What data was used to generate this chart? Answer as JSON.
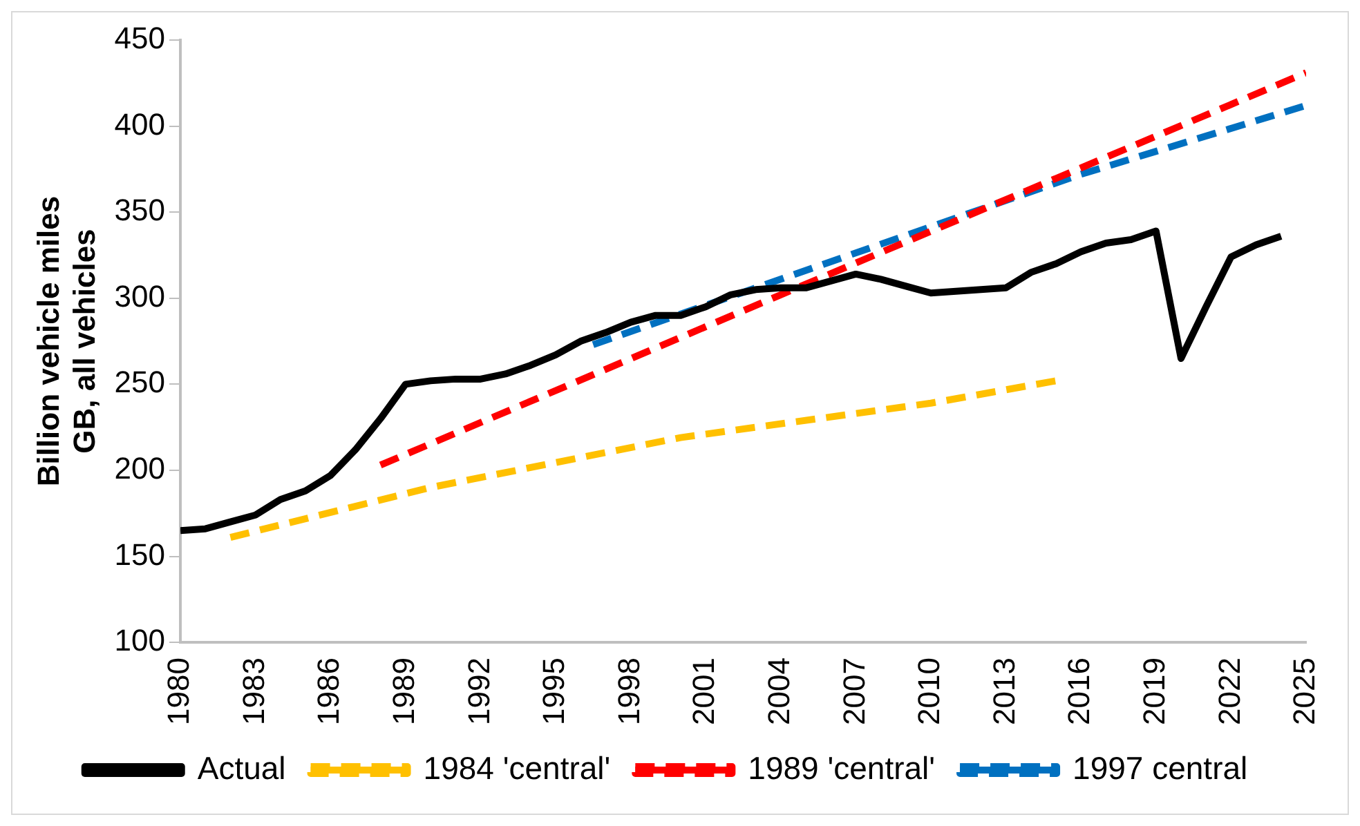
{
  "chart_data": {
    "type": "line",
    "ylabel": "Billion vehicle miles\nGB, all vehicles",
    "xlim": [
      1980,
      2025
    ],
    "xticks": [
      1980,
      1983,
      1986,
      1989,
      1992,
      1995,
      1998,
      2001,
      2004,
      2007,
      2010,
      2013,
      2016,
      2019,
      2022,
      2025
    ],
    "ylim": [
      100,
      450
    ],
    "yticks": [
      100,
      150,
      200,
      250,
      300,
      350,
      400,
      450
    ],
    "grid": false,
    "legend": "bottom",
    "marker": "none",
    "series": [
      {
        "name": "Actual",
        "color": "#000000",
        "line_style": "solid",
        "x": [
          1980,
          1981,
          1982,
          1983,
          1984,
          1985,
          1986,
          1987,
          1988,
          1989,
          1990,
          1991,
          1992,
          1993,
          1994,
          1995,
          1996,
          1997,
          1998,
          1999,
          2000,
          2001,
          2002,
          2003,
          2004,
          2005,
          2006,
          2007,
          2008,
          2009,
          2010,
          2011,
          2012,
          2013,
          2014,
          2015,
          2016,
          2017,
          2018,
          2019,
          2020,
          2021,
          2022,
          2023,
          2024
        ],
        "values": [
          165,
          166,
          170,
          174,
          183,
          188,
          197,
          212,
          230,
          250,
          252,
          253,
          253,
          256,
          261,
          267,
          275,
          280,
          286,
          290,
          290,
          295,
          302,
          305,
          306,
          306,
          310,
          314,
          311,
          307,
          303,
          304,
          305,
          306,
          315,
          320,
          327,
          332,
          334,
          339,
          265,
          295,
          324,
          331,
          336
        ]
      },
      {
        "name": "1984 'central'",
        "color": "#ffc000",
        "line_style": "dashed",
        "x": [
          1982,
          1990,
          2000,
          2010,
          2015
        ],
        "values": [
          161,
          190,
          219,
          239,
          252
        ]
      },
      {
        "name": "1989 'central'",
        "color": "#ff0000",
        "line_style": "dashed",
        "x": [
          1988,
          2004,
          2025
        ],
        "values": [
          203,
          302,
          431
        ]
      },
      {
        "name": "1997 central",
        "color": "#0070c0",
        "line_style": "dashed",
        "x": [
          1996.5,
          2016,
          2025
        ],
        "values": [
          273,
          372,
          412
        ]
      }
    ]
  }
}
